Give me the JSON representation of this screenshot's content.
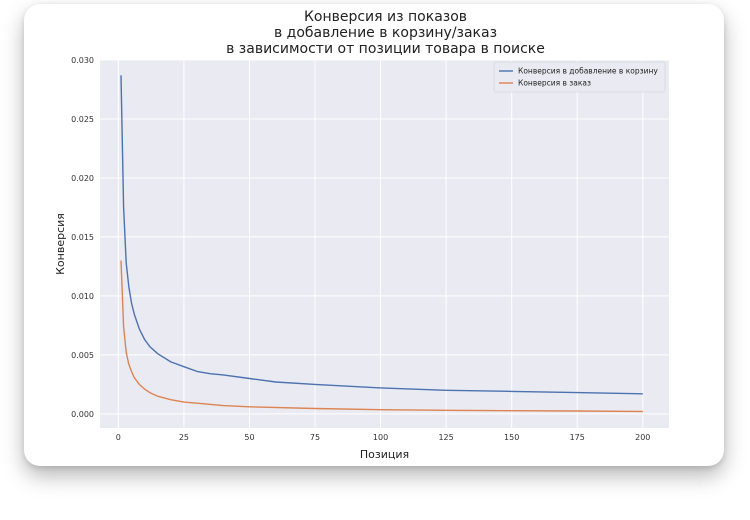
{
  "chart_data": {
    "type": "line",
    "title_lines": [
      "Конверсия из показов",
      "в добавление в корзину/заказ",
      "в зависимости от позиции товара в поиске"
    ],
    "xlabel": "Позиция",
    "ylabel": "Конверсия",
    "xlim": [
      -7,
      210
    ],
    "ylim": [
      -0.0012,
      0.03
    ],
    "xticks": [
      "0",
      "25",
      "50",
      "75",
      "100",
      "125",
      "150",
      "175",
      "200"
    ],
    "yticks": [
      "0.000",
      "0.005",
      "0.010",
      "0.015",
      "0.020",
      "0.025",
      "0.030"
    ],
    "grid": true,
    "legend_position": "top-right",
    "series": [
      {
        "name": "Конверсия в добавление в корзину",
        "color": "#4c72b0",
        "x": [
          1,
          2,
          3,
          4,
          5,
          6,
          8,
          10,
          12,
          15,
          20,
          25,
          30,
          35,
          40,
          50,
          60,
          75,
          100,
          125,
          150,
          175,
          200
        ],
        "y": [
          0.0287,
          0.0175,
          0.0128,
          0.0108,
          0.0094,
          0.0085,
          0.0072,
          0.0063,
          0.0057,
          0.0051,
          0.0044,
          0.004,
          0.0036,
          0.0034,
          0.0033,
          0.003,
          0.0027,
          0.0025,
          0.0022,
          0.002,
          0.0019,
          0.0018,
          0.0017
        ]
      },
      {
        "name": "Конверсия в заказ",
        "color": "#dd8452",
        "x": [
          1,
          2,
          3,
          4,
          5,
          6,
          8,
          10,
          12,
          15,
          20,
          25,
          30,
          40,
          50,
          75,
          100,
          125,
          150,
          175,
          200
        ],
        "y": [
          0.013,
          0.0074,
          0.0052,
          0.0042,
          0.0036,
          0.0031,
          0.0025,
          0.0021,
          0.0018,
          0.0015,
          0.0012,
          0.001,
          0.0009,
          0.0007,
          0.0006,
          0.00045,
          0.00035,
          0.0003,
          0.00027,
          0.00024,
          0.0002
        ]
      }
    ]
  }
}
